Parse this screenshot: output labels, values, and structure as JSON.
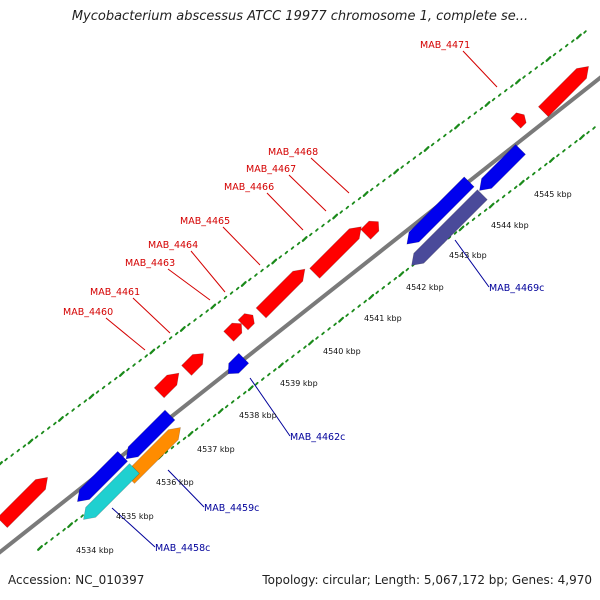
{
  "title": "Mycobacterium abscessus ATCC 19977 chromosome 1, complete se...",
  "footer": {
    "accession": "Accession: NC_010397",
    "summary": "Topology: circular; Length: 5,067,172 bp; Genes: 4,970"
  },
  "colors": {
    "forward_gene": "#ff0000",
    "reverse_gene": "#0000ee",
    "orange_gene": "#ff8c00",
    "cyan_gene": "#1fd0d0",
    "slate_gene": "#4a4a9a",
    "backbone": "#7a7a7a",
    "tick": "#1a8a1a",
    "forward_label": "#d40000",
    "reverse_label": "#00009a"
  },
  "kbp_ticks": [
    "4534 kbp",
    "4535 kbp",
    "4536 kbp",
    "4537 kbp",
    "4538 kbp",
    "4539 kbp",
    "4540 kbp",
    "4541 kbp",
    "4542 kbp",
    "4543 kbp",
    "4544 kbp",
    "4545 kbp"
  ],
  "forward_labels": [
    "MAB_4460",
    "MAB_4461",
    "MAB_4463",
    "MAB_4464",
    "MAB_4465",
    "MAB_4466",
    "MAB_4467",
    "MAB_4468",
    "MAB_4471"
  ],
  "reverse_labels": [
    "MAB_4458c",
    "MAB_4459c",
    "MAB_4462c",
    "MAB_4469c"
  ]
}
